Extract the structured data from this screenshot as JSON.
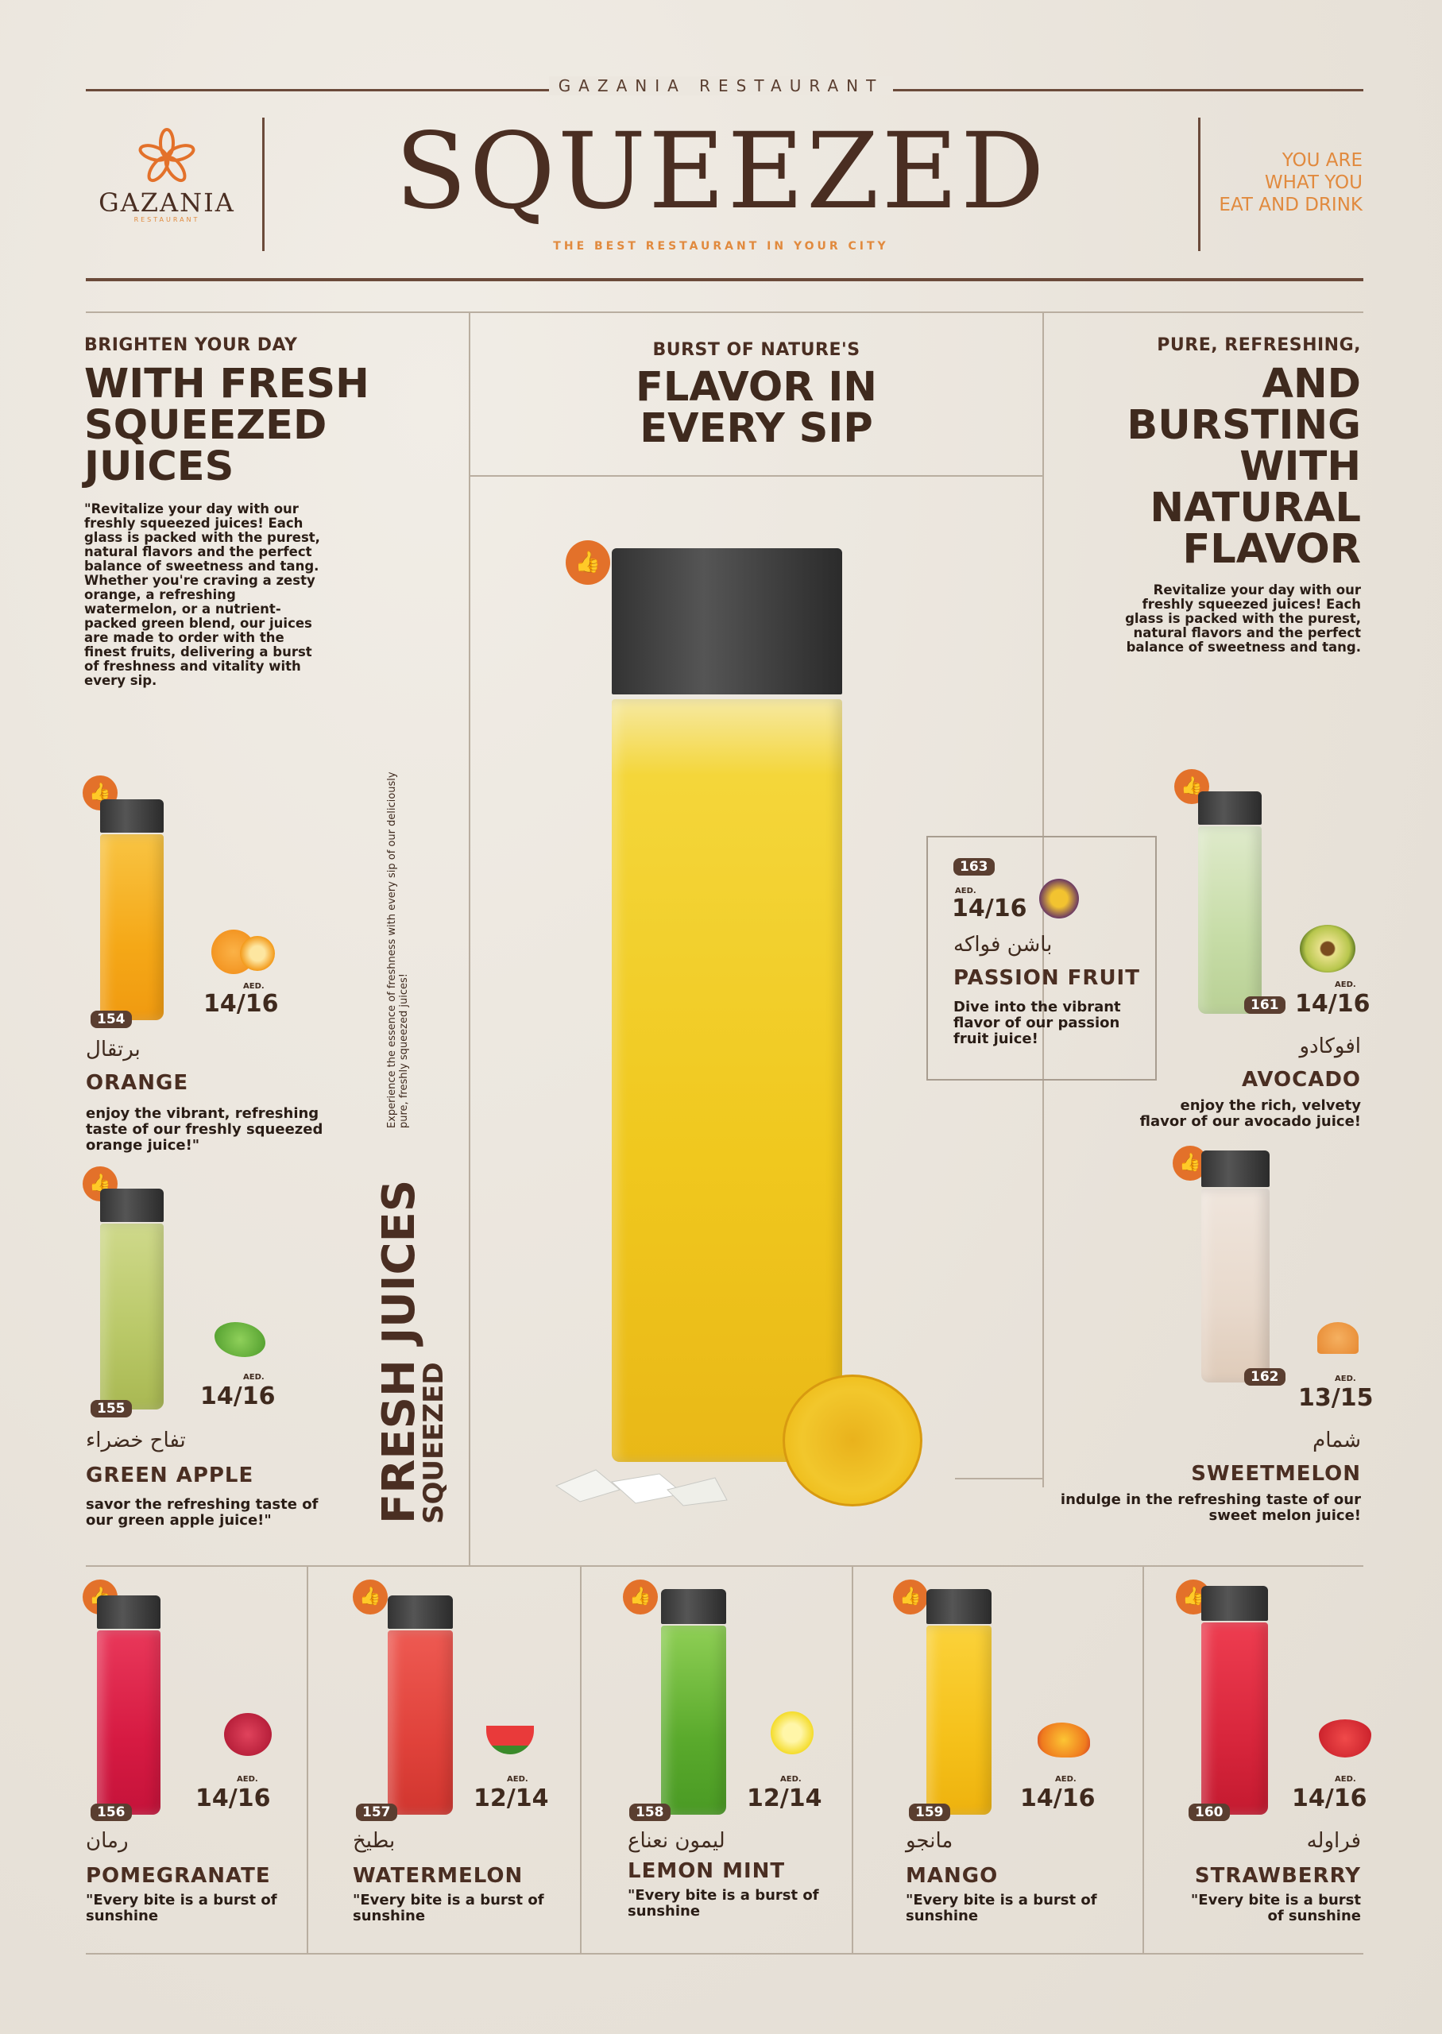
{
  "header": {
    "restaurant_name": "GAZANIA RESTAURANT",
    "title": "SQUEEZED",
    "tagline": "THE BEST RESTAURANT IN YOUR CITY",
    "logo_name": "GAZANIA",
    "logo_sub": "RESTAURANT",
    "slogan_line1": "YOU ARE",
    "slogan_line2": "WHAT YOU",
    "slogan_line3": "EAT AND DRINK"
  },
  "left_intro": {
    "kicker": "BRIGHTEN YOUR DAY",
    "headline_1": "WITH FRESH",
    "headline_2": "SQUEEZED",
    "headline_3": "JUICES",
    "body": "\"Revitalize your day with our freshly squeezed juices! Each glass is packed with the purest, natural flavors and the perfect balance of sweetness and tang. Whether you're craving a zesty orange, a refreshing watermelon, or a nutrient-packed green blend, our juices are made to order with the finest fruits, delivering a burst of freshness and vitality with every sip."
  },
  "center_intro": {
    "kicker": "BURST OF NATURE'S",
    "headline_1": "FLAVOR IN",
    "headline_2": "EVERY SIP"
  },
  "right_intro": {
    "kicker": "PURE, REFRESHING,",
    "headline_1": "AND",
    "headline_2": "BURSTING",
    "headline_3": "WITH",
    "headline_4": "NATURAL",
    "headline_5": "FLAVOR",
    "body": "Revitalize your day with our freshly squeezed juices! Each glass is packed with the purest, natural flavors and the perfect balance of sweetness and tang."
  },
  "vertical_text": {
    "small": "Experience the essence of freshness with every sip of our deliciously pure, freshly squeezed juices!",
    "big_1": "FRESH JUICES",
    "big_2": "SQUEEZED"
  },
  "aed_label": "AED.",
  "products": {
    "orange": {
      "code": "154",
      "price": "14/16",
      "arabic": "برتقال",
      "name": "ORANGE",
      "desc": "enjoy the vibrant, refreshing taste of our freshly squeezed orange juice!\""
    },
    "green_apple": {
      "code": "155",
      "price": "14/16",
      "arabic": "تفاح خضراء",
      "name": "GREEN APPLE",
      "desc": "savor the refreshing taste of our green apple juice!\""
    },
    "passion_fruit": {
      "code": "163",
      "price": "14/16",
      "arabic": "باشن فواكه",
      "name": "PASSION FRUIT",
      "desc": "Dive into the vibrant flavor of our passion fruit juice!"
    },
    "avocado": {
      "code": "161",
      "price": "14/16",
      "arabic": "افوكادو",
      "name": "AVOCADO",
      "desc": "enjoy the rich, velvety flavor of our avocado juice!"
    },
    "sweetmelon": {
      "code": "162",
      "price": "13/15",
      "arabic": "شمام",
      "name": "SWEETMELON",
      "desc": "indulge in the refreshing taste of our sweet melon juice!"
    },
    "pomegranate": {
      "code": "156",
      "price": "14/16",
      "arabic": "رمان",
      "name": "POMEGRANATE",
      "desc": "\"Every bite is a burst of sunshine"
    },
    "watermelon": {
      "code": "157",
      "price": "12/14",
      "arabic": "بطيخ",
      "name": "WATERMELON",
      "desc": "\"Every bite is a burst of sunshine"
    },
    "lemon_mint": {
      "code": "158",
      "price": "12/14",
      "arabic": "ليمون نعناع",
      "name": "LEMON MINT",
      "desc": "\"Every bite is a burst of sunshine"
    },
    "mango": {
      "code": "159",
      "price": "14/16",
      "arabic": "مانجو",
      "name": "MANGO",
      "desc": "\"Every bite is a burst of sunshine"
    },
    "strawberry": {
      "code": "160",
      "price": "14/16",
      "arabic": "فراوله",
      "name": "STRAWBERRY",
      "desc": "\"Every bite is a burst of sunshine"
    }
  },
  "icons": {
    "like": "thumbs-up-icon",
    "logo": "flower-logo-icon"
  },
  "colors": {
    "brown": "#4a2e22",
    "accent_orange": "#e18a3e",
    "badge_orange": "#e3712a",
    "paper": "#ece7df"
  }
}
